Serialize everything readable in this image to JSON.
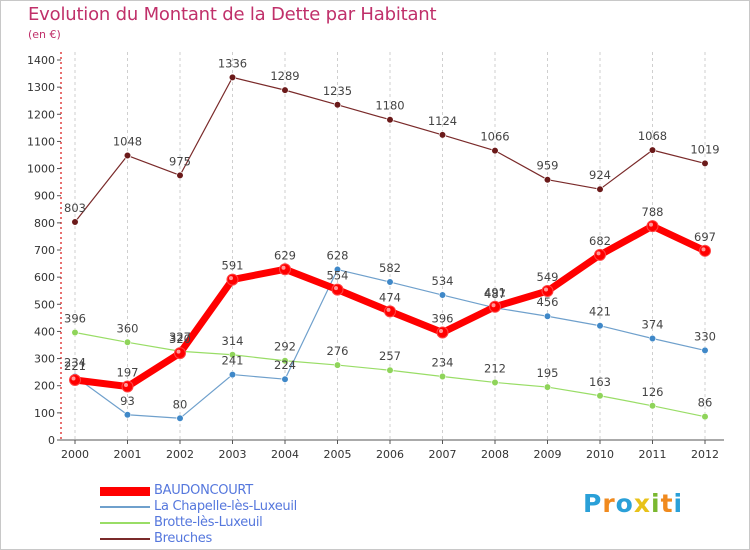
{
  "title": "Evolution du Montant de la Dette par Habitant",
  "subtitle": "(en €)",
  "logo": {
    "letters": [
      {
        "ch": "P",
        "color": "#2aa0d8"
      },
      {
        "ch": "r",
        "color": "#f08a1e"
      },
      {
        "ch": "o",
        "color": "#2aa0d8"
      },
      {
        "ch": "x",
        "color": "#e8c21a"
      },
      {
        "ch": "i",
        "color": "#7ab830"
      },
      {
        "ch": "t",
        "color": "#f08a1e"
      },
      {
        "ch": "i",
        "color": "#2aa0d8"
      }
    ]
  },
  "chart_data": {
    "type": "line",
    "x": [
      "2000",
      "2001",
      "2002",
      "2003",
      "2004",
      "2005",
      "2006",
      "2007",
      "2008",
      "2009",
      "2010",
      "2011",
      "2012"
    ],
    "ylim": [
      0,
      1400
    ],
    "yticks": [
      0,
      100,
      200,
      300,
      400,
      500,
      600,
      700,
      800,
      900,
      1000,
      1100,
      1200,
      1300,
      1400
    ],
    "grid": "vertical dashed",
    "legend_position": "bottom-left",
    "series": [
      {
        "name": "Breuches",
        "color": "#7a2a2a",
        "marker": "#6b1a1a",
        "width": 1.2,
        "values": [
          803,
          1048,
          975,
          1336,
          1289,
          1235,
          1180,
          1124,
          1066,
          959,
          924,
          1068,
          1019
        ]
      },
      {
        "name": "Brotte-lès-Luxeuil",
        "color": "#99dd66",
        "marker": "#8fd45a",
        "width": 1.2,
        "values": [
          396,
          360,
          327,
          314,
          292,
          276,
          257,
          234,
          212,
          195,
          163,
          126,
          86
        ]
      },
      {
        "name": "La Chapelle-lès-Luxeuil",
        "color": "#6fa0cc",
        "marker": "#3f88c8",
        "width": 1.2,
        "values": [
          234,
          93,
          80,
          241,
          224,
          628,
          582,
          534,
          487,
          456,
          421,
          374,
          330
        ]
      },
      {
        "name": "BAUDONCOURT",
        "color": "#ff0000",
        "marker": "#ff0000",
        "width": 7,
        "values": [
          221,
          197,
          320,
          591,
          629,
          554,
          474,
          396,
          491,
          549,
          682,
          788,
          697
        ]
      }
    ],
    "legend_order": [
      "BAUDONCOURT",
      "La Chapelle-lès-Luxeuil",
      "Brotte-lès-Luxeuil",
      "Breuches"
    ]
  }
}
